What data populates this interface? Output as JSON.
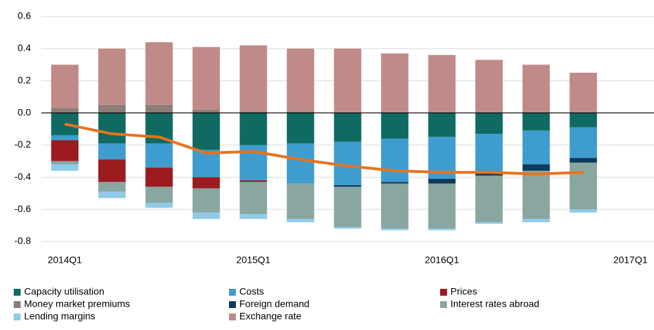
{
  "chart_data": {
    "type": "stacked_bar",
    "categories": [
      "2014Q1",
      null,
      null,
      null,
      "2015Q1",
      null,
      null,
      null,
      "2016Q1",
      null,
      null,
      null,
      "2017Q1"
    ],
    "series": [
      {
        "name": "Capacity utilisation",
        "color": "#0f6b61",
        "values": [
          -0.14,
          -0.19,
          -0.19,
          -0.23,
          -0.2,
          -0.19,
          -0.18,
          -0.16,
          -0.15,
          -0.13,
          -0.11,
          -0.09,
          null
        ]
      },
      {
        "name": "Costs",
        "color": "#3e9ccf",
        "values": [
          -0.03,
          -0.1,
          -0.15,
          -0.17,
          -0.22,
          -0.25,
          -0.27,
          -0.27,
          -0.26,
          -0.24,
          -0.21,
          -0.19,
          null
        ]
      },
      {
        "name": "Prices",
        "color": "#9b1b1f",
        "values": [
          -0.13,
          -0.14,
          -0.12,
          -0.07,
          -0.01,
          0,
          0,
          0,
          0,
          0,
          0,
          0,
          null
        ]
      },
      {
        "name": "Money market premiums",
        "color": "#8c7d76",
        "values": [
          0.03,
          0.05,
          0.05,
          0.02,
          0.01,
          0.01,
          0,
          0,
          0,
          0,
          0,
          0,
          null
        ]
      },
      {
        "name": "Foreign demand",
        "color": "#0e3a5c",
        "values": [
          0,
          0,
          0,
          0,
          0,
          0,
          -0.01,
          -0.01,
          -0.03,
          -0.02,
          -0.04,
          -0.03,
          null
        ]
      },
      {
        "name": "Interest rates abroad",
        "color": "#89a6a1",
        "values": [
          -0.02,
          -0.06,
          -0.1,
          -0.15,
          -0.2,
          -0.22,
          -0.25,
          -0.28,
          -0.28,
          -0.29,
          -0.3,
          -0.29,
          null
        ]
      },
      {
        "name": "Lending margins",
        "color": "#8fcbe8",
        "values": [
          -0.04,
          -0.04,
          -0.03,
          -0.04,
          -0.03,
          -0.02,
          -0.01,
          -0.01,
          -0.01,
          -0.01,
          -0.02,
          -0.02,
          null
        ]
      },
      {
        "name": "Exchange rate",
        "color": "#c08a89",
        "values": [
          0.27,
          0.35,
          0.39,
          0.39,
          0.41,
          0.39,
          0.4,
          0.37,
          0.36,
          0.33,
          0.3,
          0.25,
          null
        ]
      }
    ],
    "line": {
      "color": "#e8731e",
      "values": [
        -0.07,
        -0.13,
        -0.15,
        -0.25,
        -0.24,
        -0.29,
        -0.33,
        -0.36,
        -0.37,
        -0.37,
        -0.38,
        -0.37,
        null
      ]
    },
    "ylim": [
      -0.8,
      0.6
    ],
    "yticks": [
      -0.8,
      -0.6,
      -0.4,
      -0.2,
      {
        "value": 0,
        "label": "0.0"
      },
      0.2,
      0.4,
      0.6
    ],
    "grid": true
  }
}
